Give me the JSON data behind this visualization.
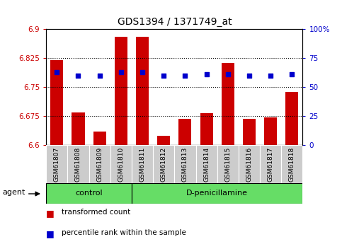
{
  "title": "GDS1394 / 1371749_at",
  "samples": [
    "GSM61807",
    "GSM61808",
    "GSM61809",
    "GSM61810",
    "GSM61811",
    "GSM61812",
    "GSM61813",
    "GSM61814",
    "GSM61815",
    "GSM61816",
    "GSM61817",
    "GSM61818"
  ],
  "red_values": [
    6.82,
    6.685,
    6.635,
    6.88,
    6.88,
    6.625,
    6.668,
    6.682,
    6.812,
    6.668,
    6.672,
    6.738
  ],
  "blue_pct": [
    63,
    60,
    60,
    63,
    63,
    60,
    60,
    61,
    61,
    60,
    60,
    61
  ],
  "ymin": 6.6,
  "ymax": 6.9,
  "yticks_left": [
    6.6,
    6.675,
    6.75,
    6.825,
    6.9
  ],
  "yticks_right": [
    0,
    25,
    50,
    75,
    100
  ],
  "bar_color": "#cc0000",
  "dot_color": "#0000cc",
  "control_samples": 4,
  "control_label": "control",
  "treatment_label": "D-penicillamine",
  "agent_label": "agent",
  "legend_bar": "transformed count",
  "legend_dot": "percentile rank within the sample",
  "bar_width": 0.6,
  "background_color": "#ffffff",
  "plot_bg": "#ffffff",
  "tick_label_color_left": "#cc0000",
  "tick_label_color_right": "#0000cc",
  "group_bg": "#66dd66",
  "sample_bg": "#cccccc",
  "border_color": "#888888"
}
